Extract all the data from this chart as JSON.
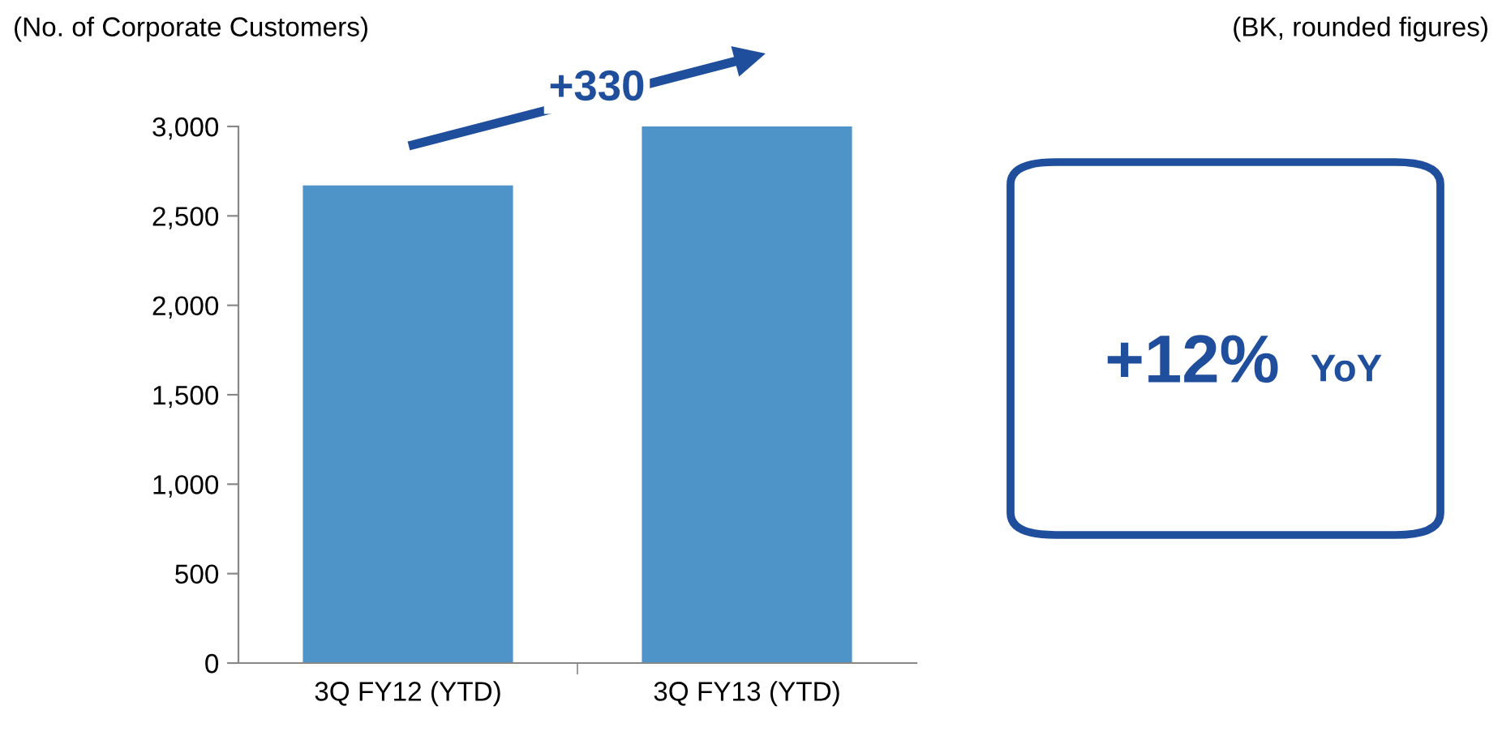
{
  "chart_data": {
    "type": "bar",
    "ylabel": "(No. of Corporate Customers)",
    "categories": [
      "3Q FY12 (YTD)",
      "3Q FY13 (YTD)"
    ],
    "values": [
      2670,
      3000
    ],
    "color": "#4f94c9",
    "ylim": [
      0,
      3000
    ],
    "yticks": [
      0,
      500,
      {
        "value": 1000,
        "label": "1,000"
      },
      {
        "value": 1500,
        "label": "1,500"
      },
      {
        "value": 2000,
        "label": "2,000"
      },
      {
        "value": 2500,
        "label": "2,500"
      },
      {
        "value": 3000,
        "label": "3,000"
      }
    ],
    "grid": false,
    "annotations": [
      "(BK, rounded figures)",
      "+330",
      "+12%",
      "YoY"
    ]
  }
}
